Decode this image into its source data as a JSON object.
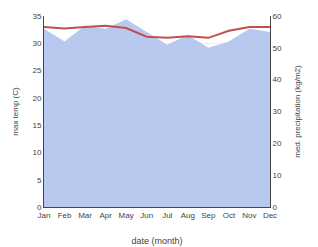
{
  "chart_data": {
    "type": "line",
    "categories": [
      "Jan",
      "Feb",
      "Mar",
      "Apr",
      "May",
      "Jun",
      "Jul",
      "Aug",
      "Sep",
      "Oct",
      "Nov",
      "Dec"
    ],
    "series": [
      {
        "type": "area",
        "axis": "y2",
        "color": "#b8c8ee",
        "values": [
          56,
          52,
          57,
          56,
          59,
          55,
          51,
          54,
          50,
          52,
          56,
          55
        ]
      },
      {
        "type": "line",
        "color": "#c0504d",
        "values": [
          33.0,
          32.7,
          33.0,
          33.2,
          32.8,
          31.2,
          31.0,
          31.3,
          31.0,
          32.3,
          33.0,
          33.0
        ]
      }
    ],
    "xlabel": "date (month)",
    "ylabel": "max temp (C)",
    "y2label": "med. precipitation (kg/m2)",
    "ylim": [
      0,
      35
    ],
    "yticks": [
      0,
      5,
      10,
      15,
      20,
      25,
      30,
      35
    ],
    "y2lim": [
      0,
      60
    ],
    "y2ticks": [
      0,
      10,
      20,
      30,
      40,
      50,
      60
    ],
    "grid": true
  }
}
